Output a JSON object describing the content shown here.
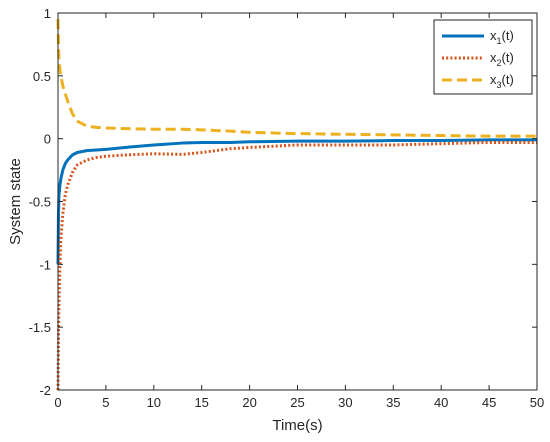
{
  "chart_data": {
    "type": "line",
    "title": "",
    "xlabel": "Time(s)",
    "ylabel": "System state",
    "xlim": [
      0,
      50
    ],
    "ylim": [
      -2,
      1
    ],
    "x_ticks": [
      0,
      5,
      10,
      15,
      20,
      25,
      30,
      35,
      40,
      45,
      50
    ],
    "x_tick_labels": [
      "0",
      "5",
      "10",
      "15",
      "20",
      "25",
      "30",
      "35",
      "40",
      "45",
      "50"
    ],
    "y_ticks": [
      -2,
      -1.5,
      -1,
      -0.5,
      0,
      0.5,
      1
    ],
    "y_tick_labels": [
      "-2",
      "-1.5",
      "-1",
      "-0.5",
      "0",
      "0.5",
      "1"
    ],
    "grid": false,
    "legend_position": "top-right",
    "series": [
      {
        "name": "x1(t)",
        "legend_base": "x",
        "legend_sub": "1",
        "legend_suffix": "(t)",
        "color": "#0072BD",
        "style": "solid",
        "x": [
          0,
          0.05,
          0.1,
          0.2,
          0.3,
          0.5,
          0.75,
          1,
          1.5,
          2,
          3,
          4,
          5,
          7,
          10,
          13,
          15,
          18,
          20,
          25,
          30,
          35,
          40,
          45,
          50
        ],
        "y": [
          -1.0,
          -0.6,
          -0.45,
          -0.37,
          -0.32,
          -0.25,
          -0.2,
          -0.17,
          -0.13,
          -0.11,
          -0.095,
          -0.09,
          -0.085,
          -0.07,
          -0.05,
          -0.035,
          -0.03,
          -0.03,
          -0.025,
          -0.02,
          -0.02,
          -0.015,
          -0.015,
          -0.01,
          -0.01
        ]
      },
      {
        "name": "x2(t)",
        "legend_base": "x",
        "legend_sub": "2",
        "legend_suffix": "(t)",
        "color": "#D95319",
        "style": "dotted",
        "x": [
          0,
          0.05,
          0.1,
          0.2,
          0.3,
          0.5,
          0.75,
          1,
          1.5,
          2,
          3,
          4,
          5,
          7,
          10,
          13,
          15,
          18,
          20,
          25,
          30,
          35,
          40,
          45,
          50
        ],
        "y": [
          -2.0,
          -1.6,
          -1.3,
          -1.0,
          -0.8,
          -0.6,
          -0.45,
          -0.37,
          -0.27,
          -0.21,
          -0.17,
          -0.15,
          -0.14,
          -0.13,
          -0.12,
          -0.125,
          -0.11,
          -0.08,
          -0.07,
          -0.05,
          -0.05,
          -0.05,
          -0.04,
          -0.03,
          -0.03
        ]
      },
      {
        "name": "x3(t)",
        "legend_base": "x",
        "legend_sub": "3",
        "legend_suffix": "(t)",
        "color": "#EDB120",
        "style": "dashed",
        "x": [
          0,
          0.05,
          0.1,
          0.2,
          0.3,
          0.5,
          0.75,
          1,
          1.5,
          2,
          3,
          4,
          5,
          7,
          10,
          13,
          15,
          18,
          20,
          25,
          30,
          35,
          40,
          45,
          50
        ],
        "y": [
          0.95,
          0.75,
          0.62,
          0.55,
          0.5,
          0.42,
          0.36,
          0.3,
          0.2,
          0.14,
          0.1,
          0.09,
          0.085,
          0.08,
          0.075,
          0.075,
          0.07,
          0.06,
          0.05,
          0.04,
          0.035,
          0.03,
          0.025,
          0.02,
          0.02
        ]
      }
    ]
  }
}
